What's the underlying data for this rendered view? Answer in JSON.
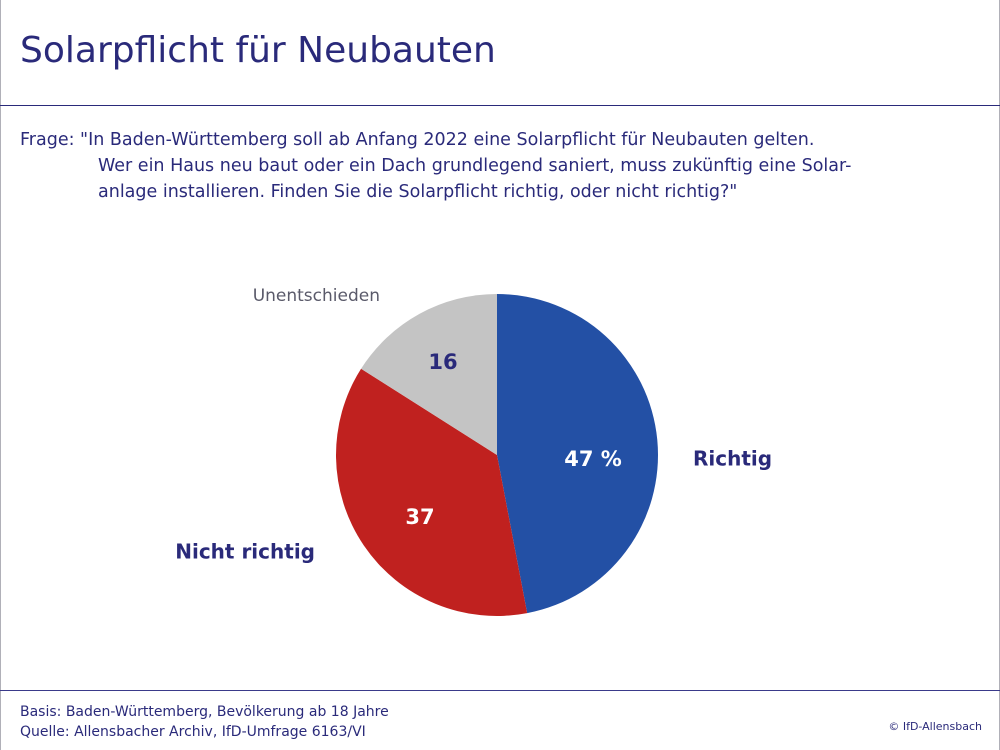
{
  "title": "Solarpflicht für Neubauten",
  "question": {
    "lines": [
      "Frage: \"In Baden-Württemberg soll ab Anfang 2022 eine Solarpflicht für Neubauten gelten.",
      "Wer ein Haus neu baut oder ein Dach grundlegend saniert, muss zukünftig eine Solar-",
      "anlage installieren. Finden Sie die Solarpflicht richtig, oder nicht richtig?\""
    ]
  },
  "chart_data": {
    "type": "pie",
    "slices": [
      {
        "label": "Richtig",
        "value": 47,
        "value_label": "47 %",
        "color": "#2350a5"
      },
      {
        "label": "Nicht richtig",
        "value": 37,
        "value_label": "37",
        "color": "#c0211f"
      },
      {
        "label": "Unentschieden",
        "value": 16,
        "value_label": "16",
        "color": "#c4c4c4"
      }
    ]
  },
  "footer": {
    "basis": "Basis: Baden-Württemberg, Bevölkerung ab 18 Jahre",
    "quelle": "Quelle: Allensbacher Archiv, IfD-Umfrage 6163/VI"
  },
  "copyright": "© IfD-Allensbach"
}
